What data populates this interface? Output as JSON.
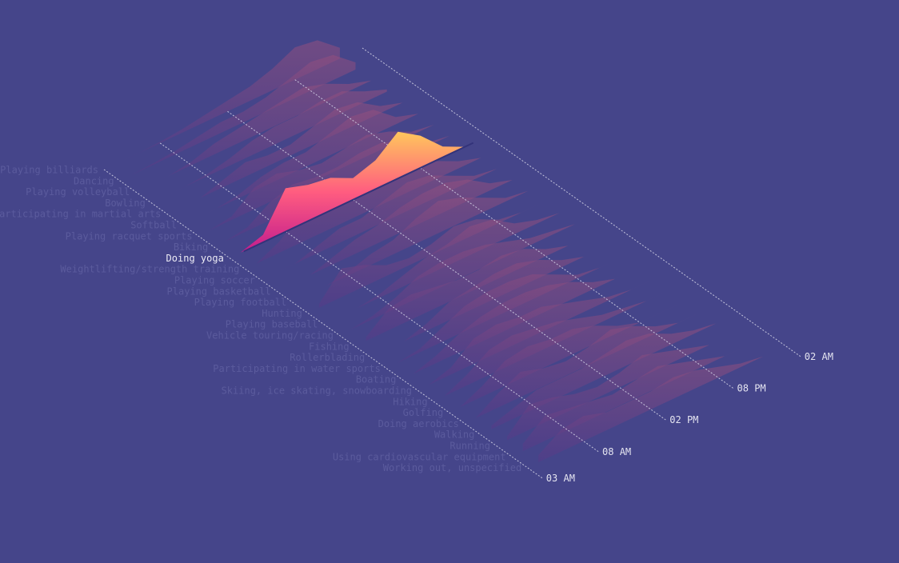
{
  "chart_data": {
    "type": "ridgeline",
    "x": [
      4,
      6,
      8,
      10,
      12,
      14,
      16,
      18,
      20,
      22,
      24
    ],
    "xlim": [
      3,
      26
    ],
    "xticks": [
      {
        "value": 3,
        "label": "03 AM"
      },
      {
        "value": 8,
        "label": "08 AM"
      },
      {
        "value": 14,
        "label": "02 PM"
      },
      {
        "value": 20,
        "label": "08 PM"
      },
      {
        "value": 26,
        "label": "02 AM"
      }
    ],
    "ylim": [
      0,
      100
    ],
    "highlight": 8,
    "highlight_colors": [
      "#c21c8e",
      "#ff5c80",
      "#ffc65c"
    ],
    "muted_colors": [
      "#553a88",
      "#94507e"
    ],
    "series": [
      {
        "name": "Playing billiards",
        "values": [
          0,
          0,
          2,
          5,
          10,
          15,
          20,
          30,
          45,
          40,
          15
        ]
      },
      {
        "name": "Dancing",
        "values": [
          0,
          2,
          5,
          10,
          15,
          15,
          20,
          30,
          40,
          35,
          10
        ]
      },
      {
        "name": "Playing volleyball",
        "values": [
          0,
          0,
          5,
          15,
          20,
          25,
          30,
          35,
          25,
          10,
          0
        ]
      },
      {
        "name": "Bowling",
        "values": [
          0,
          0,
          3,
          10,
          20,
          25,
          25,
          30,
          30,
          15,
          3
        ]
      },
      {
        "name": "Participating in martial arts",
        "values": [
          0,
          0,
          10,
          20,
          15,
          15,
          25,
          35,
          30,
          10,
          0
        ]
      },
      {
        "name": "Softball",
        "values": [
          0,
          0,
          5,
          15,
          20,
          20,
          30,
          40,
          35,
          10,
          0
        ]
      },
      {
        "name": "Playing racquet sports",
        "values": [
          0,
          5,
          30,
          35,
          25,
          20,
          25,
          30,
          20,
          5,
          0
        ]
      },
      {
        "name": "Biking",
        "values": [
          0,
          5,
          25,
          35,
          30,
          30,
          35,
          35,
          20,
          5,
          0
        ]
      },
      {
        "name": "Doing yoga",
        "values": [
          0,
          10,
          60,
          50,
          45,
          30,
          40,
          65,
          45,
          15,
          0
        ]
      },
      {
        "name": "Weightlifting/strength training",
        "values": [
          0,
          15,
          40,
          35,
          30,
          35,
          45,
          40,
          25,
          10,
          0
        ]
      },
      {
        "name": "Playing soccer",
        "values": [
          0,
          0,
          10,
          20,
          20,
          30,
          40,
          35,
          20,
          5,
          0
        ]
      },
      {
        "name": "Playing basketball",
        "values": [
          0,
          0,
          10,
          20,
          25,
          35,
          40,
          40,
          30,
          10,
          0
        ]
      },
      {
        "name": "Playing football",
        "values": [
          0,
          0,
          5,
          15,
          20,
          35,
          45,
          35,
          20,
          5,
          0
        ]
      },
      {
        "name": "Hunting",
        "values": [
          5,
          40,
          30,
          15,
          10,
          15,
          25,
          20,
          5,
          0,
          0
        ]
      },
      {
        "name": "Playing baseball",
        "values": [
          0,
          0,
          5,
          15,
          25,
          30,
          40,
          35,
          15,
          5,
          0
        ]
      },
      {
        "name": "Vehicle touring/racing",
        "values": [
          0,
          5,
          15,
          30,
          35,
          35,
          30,
          20,
          10,
          5,
          0
        ]
      },
      {
        "name": "Fishing",
        "values": [
          5,
          30,
          35,
          30,
          25,
          25,
          30,
          25,
          10,
          0,
          0
        ]
      },
      {
        "name": "Rollerblading",
        "values": [
          0,
          0,
          10,
          25,
          30,
          35,
          35,
          25,
          10,
          0,
          0
        ]
      },
      {
        "name": "Participating in water sports",
        "values": [
          0,
          5,
          20,
          35,
          40,
          40,
          35,
          20,
          5,
          0,
          0
        ]
      },
      {
        "name": "Boating",
        "values": [
          0,
          10,
          25,
          35,
          40,
          40,
          35,
          25,
          10,
          0,
          0
        ]
      },
      {
        "name": "Skiing, ice skating, snowboarding",
        "values": [
          0,
          10,
          35,
          40,
          35,
          35,
          25,
          15,
          5,
          0,
          0
        ]
      },
      {
        "name": "Hiking",
        "values": [
          0,
          15,
          35,
          40,
          35,
          30,
          20,
          10,
          5,
          0,
          0
        ]
      },
      {
        "name": "Golfing",
        "values": [
          0,
          15,
          35,
          40,
          35,
          35,
          25,
          10,
          0,
          0,
          0
        ]
      },
      {
        "name": "Doing aerobics",
        "values": [
          0,
          20,
          35,
          25,
          20,
          25,
          35,
          25,
          10,
          0,
          0
        ]
      },
      {
        "name": "Walking",
        "values": [
          5,
          15,
          25,
          25,
          25,
          30,
          35,
          30,
          15,
          5,
          0
        ]
      },
      {
        "name": "Running",
        "values": [
          5,
          35,
          30,
          20,
          15,
          20,
          30,
          20,
          10,
          0,
          0
        ]
      },
      {
        "name": "Using cardiovascular equipment",
        "values": [
          10,
          35,
          30,
          25,
          20,
          25,
          30,
          20,
          10,
          0,
          0
        ]
      },
      {
        "name": "Working out, unspecified",
        "values": [
          10,
          30,
          35,
          25,
          25,
          25,
          30,
          25,
          15,
          5,
          0
        ]
      }
    ]
  }
}
